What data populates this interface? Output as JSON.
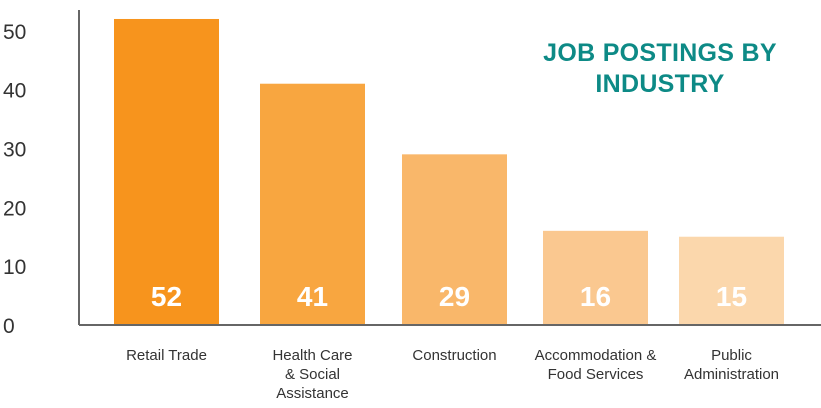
{
  "chart_data": {
    "type": "bar",
    "title": "JOB POSTINGS BY INDUSTRY",
    "categories": [
      "Retail Trade",
      "Health Care & Social Assistance",
      "Construction",
      "Accommodation & Food Services",
      "Public Administration"
    ],
    "category_lines": [
      [
        "Retail Trade"
      ],
      [
        "Health Care",
        "& Social",
        "Assistance"
      ],
      [
        "Construction"
      ],
      [
        "Accommodation &",
        "Food Services"
      ],
      [
        "Public",
        "Administration"
      ]
    ],
    "values": [
      52,
      41,
      29,
      16,
      15
    ],
    "bar_colors": [
      "#f7941d",
      "#f8a640",
      "#f9b76a",
      "#fac890",
      "#fbd7ac"
    ],
    "y_ticks": [
      0,
      10,
      20,
      30,
      40,
      50
    ],
    "ylim": [
      0,
      52
    ],
    "xlabel": "",
    "ylabel": "",
    "grid": false,
    "legend": "none",
    "title_color": "#0d8a86"
  }
}
